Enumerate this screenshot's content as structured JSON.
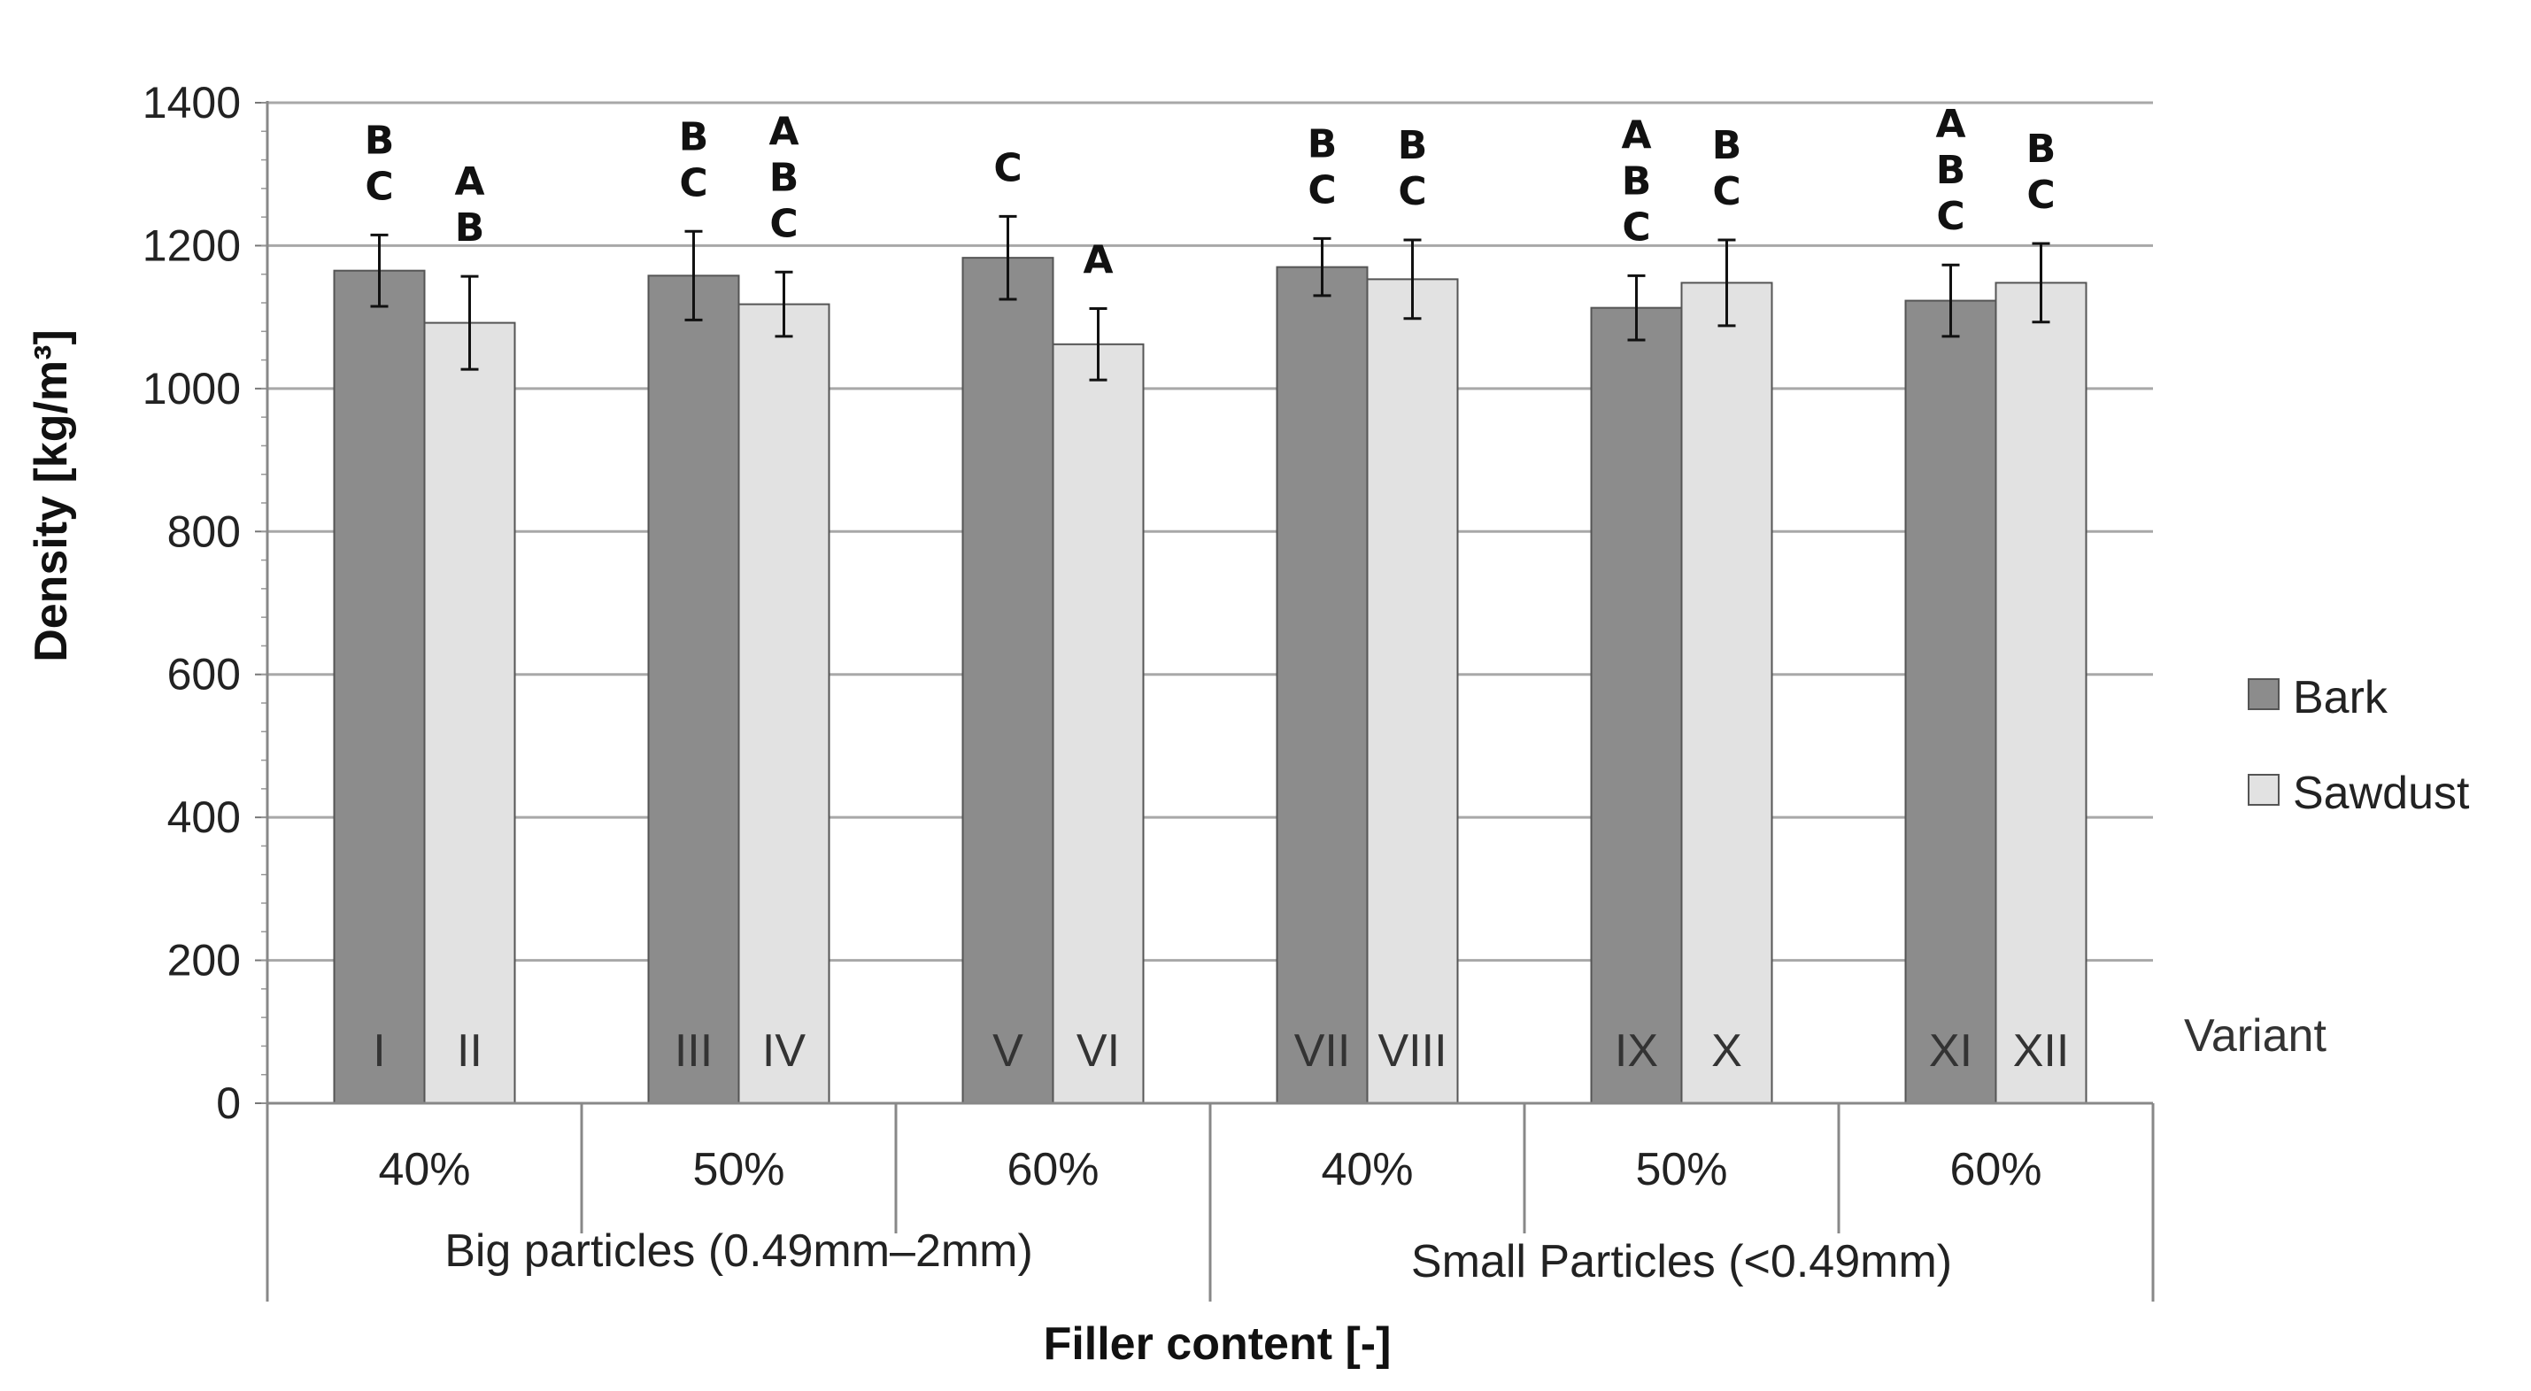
{
  "chart_data": {
    "type": "bar",
    "title": "",
    "ylabel": "Density [kg/m³]",
    "xlabel": "Filler content [-]",
    "ylim": [
      0,
      1400
    ],
    "yticks": [
      0,
      200,
      400,
      600,
      800,
      1000,
      1200,
      1400
    ],
    "grid": true,
    "legend_position": "right",
    "variant_label": "Variant",
    "colors": {
      "Bark": "#8c8c8c",
      "Sawdust": "#e2e2e2"
    },
    "groups": [
      {
        "label": "Big particles (0.49mm–2mm)"
      },
      {
        "label": "Small Particles (<0.49mm)"
      }
    ],
    "categories": [
      "40%",
      "50%",
      "60%",
      "40%",
      "50%",
      "60%"
    ],
    "series": [
      {
        "name": "Bark",
        "values": [
          1165,
          1158,
          1183,
          1170,
          1113,
          1123
        ],
        "errors": [
          50,
          62,
          58,
          40,
          45,
          50
        ],
        "variants": [
          "I",
          "III",
          "V",
          "VII",
          "IX",
          "XI"
        ],
        "letters": [
          [
            "B",
            "C"
          ],
          [
            "B",
            "C"
          ],
          [
            "C"
          ],
          [
            "B",
            "C"
          ],
          [
            "A",
            "B",
            "C"
          ],
          [
            "A",
            "B",
            "C"
          ]
        ]
      },
      {
        "name": "Sawdust",
        "values": [
          1092,
          1118,
          1062,
          1153,
          1148,
          1148
        ],
        "errors": [
          65,
          45,
          50,
          55,
          60,
          55
        ],
        "variants": [
          "II",
          "IV",
          "VI",
          "VIII",
          "X",
          "XII"
        ],
        "letters": [
          [
            "A",
            "B"
          ],
          [
            "A",
            "B",
            "C"
          ],
          [
            "A"
          ],
          [
            "B",
            "C"
          ],
          [
            "B",
            "C"
          ],
          [
            "B",
            "C"
          ]
        ]
      }
    ]
  }
}
